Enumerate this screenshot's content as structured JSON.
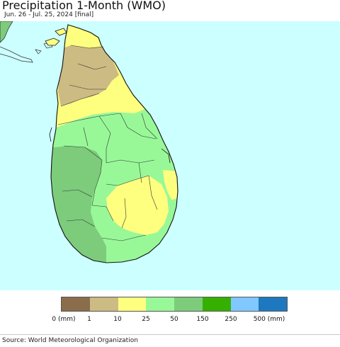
{
  "header": {
    "title": "Precipitation 1-Month (WMO)",
    "subtitle": "Jun. 26 - Jul. 25, 2024 [final]"
  },
  "map": {
    "ocean_color": "#ccffff",
    "region_colors": {
      "brown": "#cdbb84",
      "yellow": "#ffff7f",
      "light_green": "#98f898",
      "mid_green": "#7ccc7c",
      "boundary": "#333333"
    }
  },
  "legend": {
    "colors": [
      "#8b6d4c",
      "#cdbb84",
      "#ffff7f",
      "#98f898",
      "#7ccc7c",
      "#36b000",
      "#80c8ff",
      "#1e78c0"
    ],
    "labels": [
      "0 (mm)",
      "1",
      "10",
      "25",
      "50",
      "150",
      "250",
      "500 (mm)"
    ]
  },
  "footer": {
    "source": "Source: World Meteorological Organization"
  }
}
